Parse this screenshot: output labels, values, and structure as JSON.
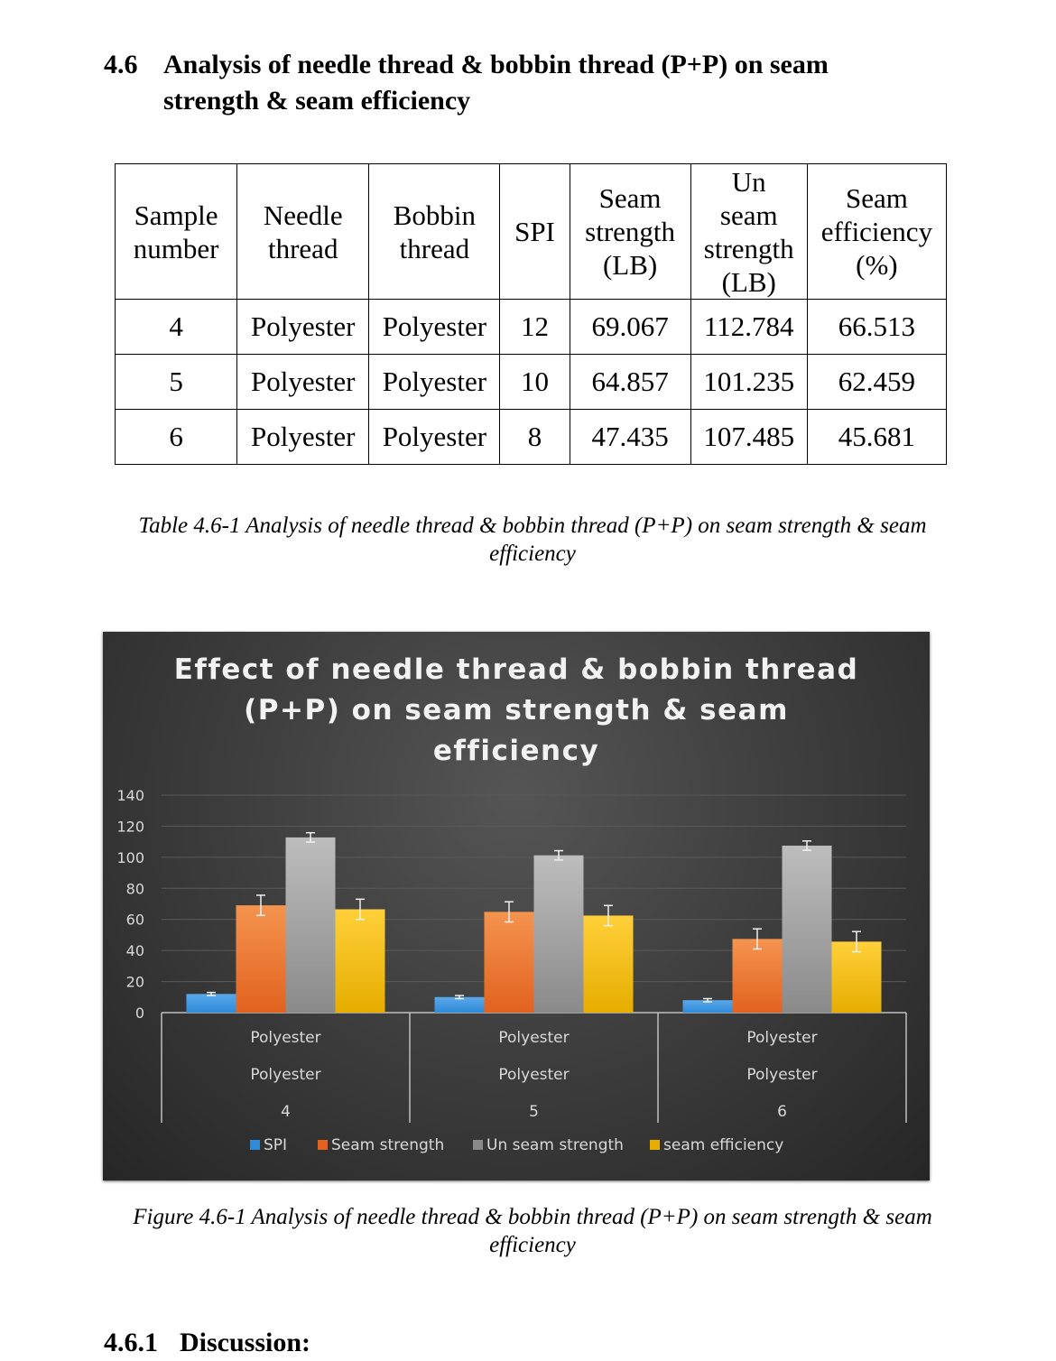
{
  "section": {
    "number": "4.6",
    "title": "Analysis of needle thread & bobbin thread (P+P) on seam strength & seam efficiency"
  },
  "table": {
    "headers": [
      "Sample number",
      "Needle thread",
      "Bobbin thread",
      "SPI",
      "Seam strength (LB)",
      "Un seam strength (LB)",
      "Seam efficiency (%)"
    ],
    "rows": [
      [
        "4",
        "Polyester",
        "Polyester",
        "12",
        "69.067",
        "112.784",
        "66.513"
      ],
      [
        "5",
        "Polyester",
        "Polyester",
        "10",
        "64.857",
        "101.235",
        "62.459"
      ],
      [
        "6",
        "Polyester",
        "Polyester",
        "8",
        "47.435",
        "107.485",
        "45.681"
      ]
    ],
    "caption": "Table 4.6-1 Analysis of needle thread & bobbin thread (P+P) on seam strength & seam efficiency"
  },
  "figure_caption": "Figure 4.6-1 Analysis of needle thread & bobbin thread (P+P) on seam strength & seam efficiency",
  "subsection": {
    "number": "4.6.1",
    "title": "Discussion:"
  },
  "chart_data": {
    "type": "bar",
    "title": "Effect of needle thread & bobbin thread (P+P)  on seam strength & seam efficiency",
    "title_lines": [
      "Effect of needle thread & bobbin thread",
      "(P+P)  on seam strength & seam",
      "efficiency"
    ],
    "categories": [
      [
        "Polyester",
        "Polyester",
        "4"
      ],
      [
        "Polyester",
        "Polyester",
        "5"
      ],
      [
        "Polyester",
        "Polyester",
        "6"
      ]
    ],
    "series": [
      {
        "name": "SPI",
        "values": [
          12,
          10,
          8
        ],
        "error": [
          1,
          1,
          1
        ],
        "color": "#2f8bd8",
        "color_top": "#5aa8ea"
      },
      {
        "name": "Seam strength",
        "values": [
          69.067,
          64.857,
          47.435
        ],
        "error": [
          6.5,
          6.5,
          6.5
        ],
        "color": "#e2621f",
        "color_top": "#f4944f"
      },
      {
        "name": "Un seam strength",
        "values": [
          112.784,
          101.235,
          107.485
        ],
        "error": [
          3,
          3,
          3
        ],
        "color": "#8a8a8a",
        "color_top": "#bdbdbd"
      },
      {
        "name": "seam efficiency",
        "values": [
          66.513,
          62.459,
          45.681
        ],
        "error": [
          6.5,
          6.5,
          6.5
        ],
        "color": "#e6ad00",
        "color_top": "#ffd03a"
      }
    ],
    "ylim": [
      0,
      140
    ],
    "yticks": [
      0,
      20,
      40,
      60,
      80,
      100,
      120,
      140
    ],
    "grid": true,
    "error_bars": true,
    "legend_position": "bottom",
    "colors": {
      "background": "#3f3f3f",
      "text": "#d9d9d9",
      "title": "#f2f2f2",
      "grid": "#5a5a5a",
      "axis": "#bfbfbf"
    }
  }
}
